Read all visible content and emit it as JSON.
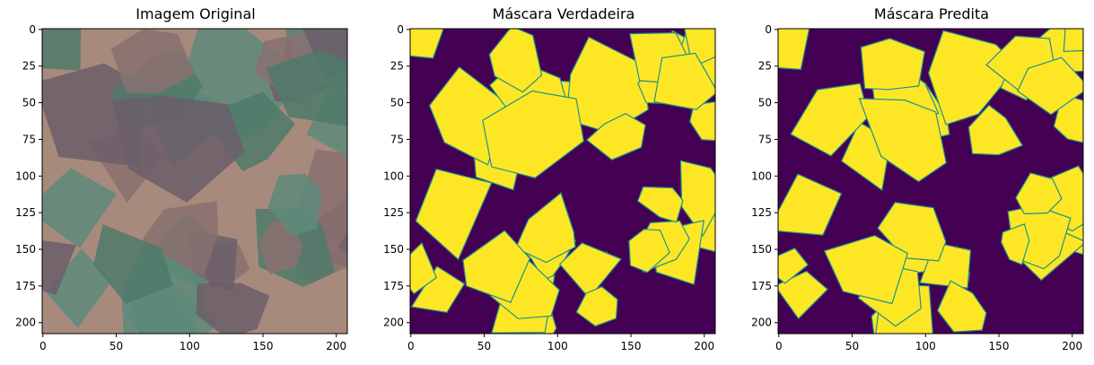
{
  "figure": {
    "panels": [
      {
        "title": "Imagem Original",
        "kind": "rgb-image"
      },
      {
        "title": "Máscara Verdadeira",
        "kind": "mask"
      },
      {
        "title": "Máscara Predita",
        "kind": "mask"
      }
    ]
  },
  "chart_data": [
    {
      "type": "heatmap",
      "title": "Imagem Original",
      "image_size": [
        208,
        208
      ],
      "xlim": [
        0,
        207
      ],
      "ylim": [
        207,
        0
      ],
      "xticks": [
        0,
        50,
        100,
        150,
        200
      ],
      "yticks": [
        0,
        25,
        50,
        75,
        100,
        125,
        150,
        175,
        200
      ],
      "palette": [
        "#a88a7c",
        "#4f7a6a",
        "#6b5e6a",
        "#8a7070",
        "#5e8a7a"
      ],
      "grid": false
    },
    {
      "type": "heatmap",
      "title": "Máscara Verdadeira",
      "image_size": [
        208,
        208
      ],
      "xlim": [
        0,
        207
      ],
      "ylim": [
        207,
        0
      ],
      "xticks": [
        0,
        50,
        100,
        150,
        200
      ],
      "yticks": [
        0,
        25,
        50,
        75,
        100,
        125,
        150,
        175,
        200
      ],
      "colormap": {
        "0": "#440154",
        "1": "#fde725",
        "edge": "#21918c"
      },
      "grid": false
    },
    {
      "type": "heatmap",
      "title": "Máscara Predita",
      "image_size": [
        208,
        208
      ],
      "xlim": [
        0,
        207
      ],
      "ylim": [
        207,
        0
      ],
      "xticks": [
        0,
        50,
        100,
        150,
        200
      ],
      "yticks": [
        0,
        25,
        50,
        75,
        100,
        125,
        150,
        175,
        200
      ],
      "colormap": {
        "0": "#440154",
        "1": "#fde725",
        "edge": "#21918c"
      },
      "grid": false
    }
  ]
}
